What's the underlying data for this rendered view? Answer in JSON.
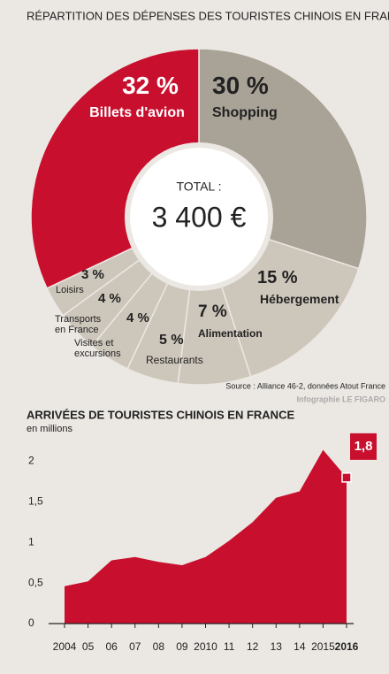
{
  "chart_data": [
    {
      "type": "donut",
      "title": "RÉPARTITION DES DÉPENSES DES TOURISTES CHINOIS EN FRANCE",
      "categories": [
        "Shopping",
        "Hébergement",
        "Alimentation",
        "Restaurants",
        "Visites et excursions",
        "Transports en France",
        "Loisirs",
        "Billets d'avion"
      ],
      "values": [
        30,
        15,
        7,
        5,
        4,
        4,
        3,
        32
      ],
      "value_labels": [
        "30 %",
        "15 %",
        "7 %",
        "5 %",
        "4 %",
        "4 %",
        "3 %",
        "32 %"
      ],
      "colors": [
        "#a9a297",
        "#cdc6bb",
        "#cdc6bb",
        "#cdc6bb",
        "#cdc6bb",
        "#cdc6bb",
        "#cdc6bb",
        "#c8102e"
      ],
      "center_title": "TOTAL :",
      "center_value": "3 400 €",
      "source": "Source : Alliance 46-2, données Atout France",
      "credit": "Infographie LE FIGARO"
    },
    {
      "type": "area",
      "title": "ARRIVÉES DE TOURISTES CHINOIS EN FRANCE",
      "subtitle": "en millions",
      "x": [
        2004,
        2005,
        2006,
        2007,
        2008,
        2009,
        2010,
        2011,
        2012,
        2013,
        2014,
        2015,
        2016
      ],
      "values": [
        0.46,
        0.52,
        0.78,
        0.82,
        0.76,
        0.72,
        0.82,
        1.02,
        1.25,
        1.55,
        1.63,
        2.14,
        1.8
      ],
      "value_labels": [
        null,
        null,
        null,
        null,
        null,
        null,
        null,
        null,
        null,
        null,
        null,
        null,
        "1,8"
      ],
      "color": "#c8102e",
      "xlim": [
        2004,
        2016
      ],
      "xticks": [
        2004,
        {
          "value": 2005,
          "label": "05"
        },
        {
          "value": 2006,
          "label": "06"
        },
        {
          "value": 2007,
          "label": "07"
        },
        {
          "value": 2008,
          "label": "08"
        },
        {
          "value": 2009,
          "label": "09"
        },
        2010,
        {
          "value": 2011,
          "label": "11"
        },
        {
          "value": 2012,
          "label": "12"
        },
        {
          "value": 2013,
          "label": "13"
        },
        {
          "value": 2014,
          "label": "14"
        },
        2015,
        2016
      ],
      "ylim": [
        0,
        2.3
      ],
      "yticks": [
        0,
        {
          "value": 0.5,
          "label": "0,5"
        },
        1,
        {
          "value": 1.5,
          "label": "1,5"
        },
        2
      ],
      "grid": false
    }
  ]
}
